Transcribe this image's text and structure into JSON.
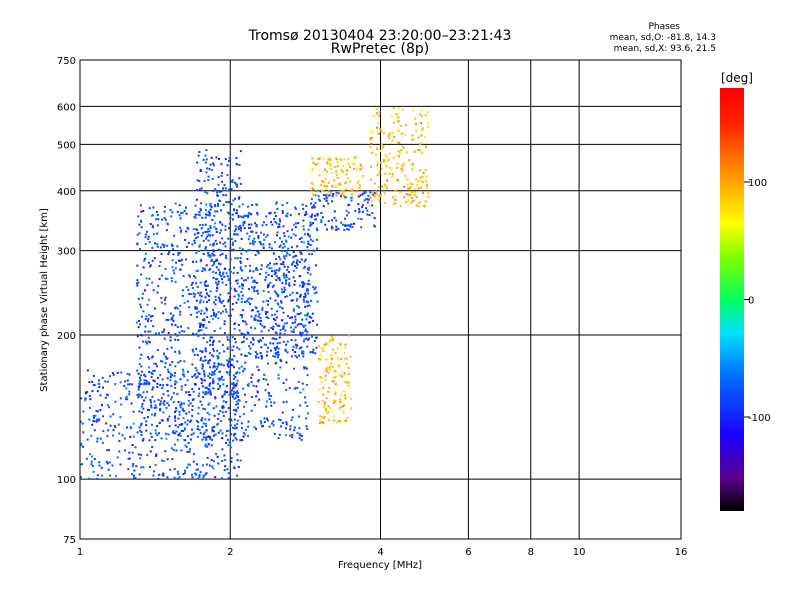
{
  "title_line1": "Tromsø 20130404 23:20:00–23:21:43",
  "title_line2": "RwPretec (8p)",
  "stats": {
    "heading": "Phases",
    "o_line": "mean, sd,O: -81.8, 14.3",
    "x_line": "mean, sd,X:  93.6, 21.5"
  },
  "colorbar": {
    "unit_label": "[deg]",
    "range": [
      -180,
      180
    ],
    "ticks": [
      {
        "value": 100,
        "label": "100"
      },
      {
        "value": 0,
        "label": "0"
      },
      {
        "value": -100,
        "label": "-100"
      }
    ]
  },
  "chart_data": {
    "type": "scatter",
    "title": "Tromsø 20130404 23:20:00–23:21:43\nRwPretec (8p)",
    "xlabel": "Frequency [MHz]",
    "ylabel": "Stationary phase Virtual Height [km]",
    "x_scale": "log",
    "y_scale": "log",
    "xlim": [
      1,
      16
    ],
    "ylim": [
      75,
      750
    ],
    "x_ticks": [
      1,
      2,
      4,
      6,
      8,
      10,
      16
    ],
    "y_ticks": [
      75,
      100,
      200,
      300,
      400,
      500,
      600,
      750
    ],
    "grid": true,
    "color_encoding": "phase [deg], rainbow scale -180 to 180",
    "series": [
      {
        "role": "O-mode low-frequency echoes",
        "phase_mean": -81.8,
        "clusters": [
          {
            "x_range": [
              1.0,
              2.1
            ],
            "y_range": [
              100,
              170
            ]
          },
          {
            "x_range": [
              1.3,
              2.9
            ],
            "y_range": [
              120,
              380
            ]
          },
          {
            "x_range": [
              1.7,
              2.1
            ],
            "y_range": [
              150,
              490
            ]
          },
          {
            "x_range": [
              2.1,
              3.0
            ],
            "y_range": [
              180,
              360
            ]
          },
          {
            "x_range": [
              2.9,
              3.9
            ],
            "y_range": [
              330,
              400
            ]
          }
        ]
      },
      {
        "role": "X-mode echoes",
        "phase_mean": 93.6,
        "clusters": [
          {
            "x_range": [
              3.0,
              3.5
            ],
            "y_range": [
              130,
              200
            ]
          },
          {
            "x_range": [
              3.8,
              5.0
            ],
            "y_range": [
              370,
              600
            ]
          },
          {
            "x_range": [
              2.9,
              3.7
            ],
            "y_range": [
              390,
              470
            ]
          }
        ]
      }
    ]
  }
}
